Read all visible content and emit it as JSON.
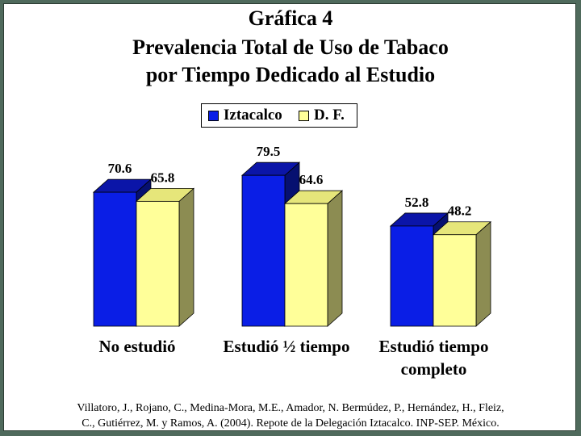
{
  "title": {
    "line1": "Gráfica 4",
    "line2": "Prevalencia Total de Uso de Tabaco",
    "line3": "por Tiempo Dedicado al Estudio"
  },
  "colors": {
    "series1_front": "#0a1ee6",
    "series1_top": "#0b15a8",
    "series1_side": "#061070",
    "series2_front": "#ffff99",
    "series2_top": "#e6e67a",
    "series2_side": "#8c8c52"
  },
  "chart_data": {
    "type": "bar",
    "title": "Prevalencia Total de Uso de Tabaco por Tiempo Dedicado al Estudio",
    "categories": [
      "No estudió",
      "Estudió ½ tiempo",
      "Estudió tiempo completo"
    ],
    "category_lines": [
      [
        "No estudió"
      ],
      [
        "Estudió ½ tiempo"
      ],
      [
        "Estudió tiempo",
        "completo"
      ]
    ],
    "series": [
      {
        "name": "Iztacalco",
        "values": [
          70.6,
          79.5,
          52.8
        ],
        "labels": [
          "70.6",
          "79.5",
          "52.8"
        ]
      },
      {
        "name": "D. F.",
        "values": [
          65.8,
          64.6,
          48.2
        ],
        "labels": [
          "65.8",
          "64.6",
          "48.2"
        ]
      }
    ],
    "ylim": [
      0,
      100
    ],
    "grid": false,
    "legend_position": "top-center",
    "three_d": true
  },
  "footer": {
    "line1": "Villatoro, J., Rojano, C., Medina-Mora, M.E., Amador, N. Bermúdez, P., Hernández, H., Fleiz,",
    "line2": "C., Gutiérrez, M. y Ramos, A. (2004). Repote de la Delegación Iztacalco. INP-SEP. México."
  }
}
